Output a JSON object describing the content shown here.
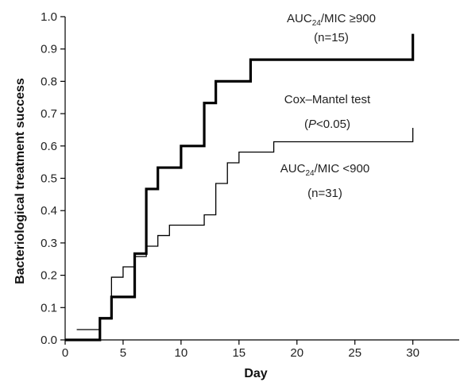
{
  "chart_data": {
    "type": "line",
    "title": "",
    "xlabel": "Day",
    "ylabel": "Bacteriological treatment success",
    "xlim": [
      0,
      34
    ],
    "ylim": [
      0,
      1.0
    ],
    "xticks": [
      0,
      5,
      10,
      15,
      20,
      25,
      30
    ],
    "xtick_labels": [
      "0",
      "5",
      "10",
      "15",
      "20",
      "25",
      "30"
    ],
    "yticks": [
      0,
      0.1,
      0.2,
      0.3,
      0.4,
      0.5,
      0.6,
      0.7,
      0.8,
      0.9,
      1.0
    ],
    "ytick_labels": [
      "0.0",
      "0.1",
      "0.2",
      "0.3",
      "0.4",
      "0.5",
      "0.6",
      "0.7",
      "0.8",
      "0.9",
      "1.0"
    ],
    "grid": false,
    "step": true,
    "series": [
      {
        "name": "AUC24/MIC ≥900",
        "label_line1": {
          "main": "AUC",
          "sub": "24",
          "rest": "/MIC ≥900"
        },
        "label_line2": "(n=15)",
        "color": "#000000",
        "line_weight": "thick",
        "x": [
          0,
          3,
          4,
          6,
          7,
          8,
          10,
          12,
          13,
          16,
          30,
          30
        ],
        "y": [
          0,
          0.067,
          0.133,
          0.267,
          0.467,
          0.533,
          0.6,
          0.733,
          0.8,
          0.867,
          0.867,
          0.947
        ]
      },
      {
        "name": "AUC24/MIC <900",
        "label_line1": {
          "main": "AUC",
          "sub": "24",
          "rest": "/MIC <900"
        },
        "label_line2": "(n=31)",
        "color": "#000000",
        "line_weight": "thin",
        "x": [
          1,
          3,
          4,
          5,
          6,
          7,
          8,
          9,
          12,
          13,
          14,
          15,
          18,
          30,
          30
        ],
        "y": [
          0.032,
          0.065,
          0.194,
          0.226,
          0.258,
          0.29,
          0.323,
          0.355,
          0.387,
          0.484,
          0.548,
          0.581,
          0.613,
          0.613,
          0.656
        ]
      }
    ],
    "annotations": {
      "test_name": "Cox–Mantel test",
      "p_open": "(",
      "p_letter": "P",
      "p_rest": "<0.05)"
    }
  }
}
